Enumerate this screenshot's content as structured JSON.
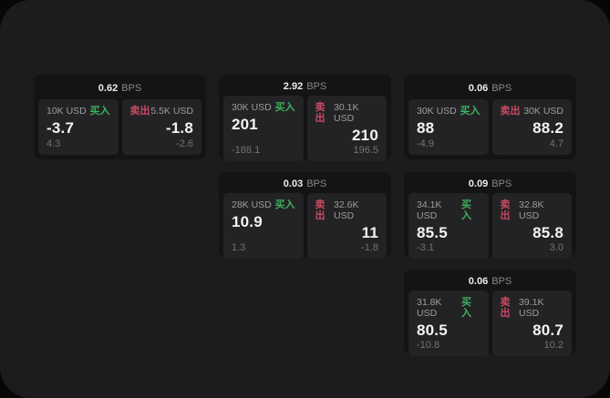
{
  "labels": {
    "bps_unit": "BPS",
    "buy": "买入",
    "sell": "卖出"
  },
  "colors": {
    "buy_green": "#3fb15f",
    "sell_red": "#c94a63",
    "page_background": "#1c1c1e",
    "card_background": "#141416",
    "panel_background": "#232325"
  },
  "cards": [
    {
      "bps": "0.62",
      "buy": {
        "amount": "10K USD",
        "value": "-3.7",
        "delta": "4.3"
      },
      "sell": {
        "amount": "5.5K USD",
        "value": "-1.8",
        "delta": "-2.6"
      }
    },
    {
      "bps": "2.92",
      "buy": {
        "amount": "30K USD",
        "value": "201",
        "delta": "-188.1"
      },
      "sell": {
        "amount": "30.1K USD",
        "value": "210",
        "delta": "196.5"
      }
    },
    {
      "bps": "0.06",
      "buy": {
        "amount": "30K USD",
        "value": "88",
        "delta": "-4.9"
      },
      "sell": {
        "amount": "30K USD",
        "value": "88.2",
        "delta": "4.7"
      }
    },
    {
      "bps": "0.03",
      "buy": {
        "amount": "28K USD",
        "value": "10.9",
        "delta": "1.3"
      },
      "sell": {
        "amount": "32.6K USD",
        "value": "11",
        "delta": "-1.8"
      }
    },
    {
      "bps": "0.09",
      "buy": {
        "amount": "34.1K USD",
        "value": "85.5",
        "delta": "-3.1"
      },
      "sell": {
        "amount": "32.8K USD",
        "value": "85.8",
        "delta": "3.0"
      }
    },
    {
      "bps": "0.06",
      "buy": {
        "amount": "31.8K USD",
        "value": "80.5",
        "delta": "-10.8"
      },
      "sell": {
        "amount": "39.1K USD",
        "value": "80.7",
        "delta": "10.2"
      }
    }
  ]
}
